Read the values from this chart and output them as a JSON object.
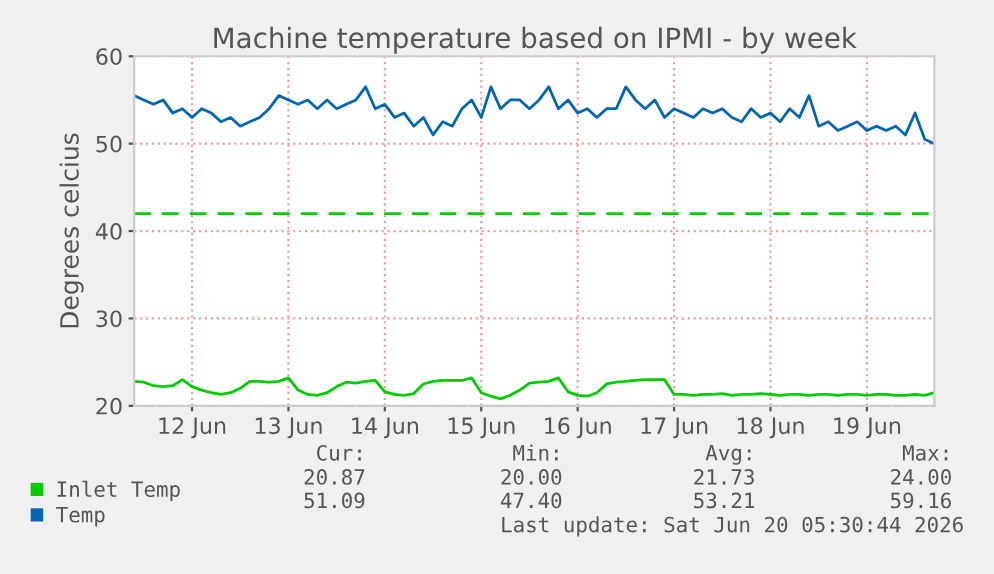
{
  "chart_data": {
    "type": "line",
    "title": "Machine temperature based on IPMI - by week",
    "ylabel": "Degrees celcius",
    "x": [
      "2026-06-11T09:36",
      "2026-06-11T12:00",
      "2026-06-11T14:24",
      "2026-06-11T16:48",
      "2026-06-11T19:12",
      "2026-06-11T21:36",
      "2026-06-12T00:00",
      "2026-06-12T02:24",
      "2026-06-12T04:48",
      "2026-06-12T07:12",
      "2026-06-12T09:36",
      "2026-06-12T12:00",
      "2026-06-12T14:24",
      "2026-06-12T16:48",
      "2026-06-12T19:12",
      "2026-06-12T21:36",
      "2026-06-13T00:00",
      "2026-06-13T02:24",
      "2026-06-13T04:48",
      "2026-06-13T07:12",
      "2026-06-13T09:36",
      "2026-06-13T12:00",
      "2026-06-13T14:24",
      "2026-06-13T16:48",
      "2026-06-13T19:12",
      "2026-06-13T21:36",
      "2026-06-14T00:00",
      "2026-06-14T02:24",
      "2026-06-14T04:48",
      "2026-06-14T07:12",
      "2026-06-14T09:36",
      "2026-06-14T12:00",
      "2026-06-14T14:24",
      "2026-06-14T16:48",
      "2026-06-14T19:12",
      "2026-06-14T21:36",
      "2026-06-15T00:00",
      "2026-06-15T02:24",
      "2026-06-15T04:48",
      "2026-06-15T07:12",
      "2026-06-15T09:36",
      "2026-06-15T12:00",
      "2026-06-15T14:24",
      "2026-06-15T16:48",
      "2026-06-15T19:12",
      "2026-06-15T21:36",
      "2026-06-16T00:00",
      "2026-06-16T02:24",
      "2026-06-16T04:48",
      "2026-06-16T07:12",
      "2026-06-16T09:36",
      "2026-06-16T12:00",
      "2026-06-16T14:24",
      "2026-06-16T16:48",
      "2026-06-16T19:12",
      "2026-06-16T21:36",
      "2026-06-17T00:00",
      "2026-06-17T02:24",
      "2026-06-17T04:48",
      "2026-06-17T07:12",
      "2026-06-17T09:36",
      "2026-06-17T12:00",
      "2026-06-17T14:24",
      "2026-06-17T16:48",
      "2026-06-17T19:12",
      "2026-06-17T21:36",
      "2026-06-18T00:00",
      "2026-06-18T02:24",
      "2026-06-18T04:48",
      "2026-06-18T07:12",
      "2026-06-18T09:36",
      "2026-06-18T12:00",
      "2026-06-18T14:24",
      "2026-06-18T16:48",
      "2026-06-18T19:12",
      "2026-06-18T21:36",
      "2026-06-19T00:00",
      "2026-06-19T02:24",
      "2026-06-19T04:48",
      "2026-06-19T07:12",
      "2026-06-19T09:36",
      "2026-06-19T12:00",
      "2026-06-19T14:24",
      "2026-06-19T16:48"
    ],
    "series": [
      {
        "name": "Inlet Temp",
        "color": "#00cc00",
        "values": [
          22.8,
          22.7,
          22.3,
          22.2,
          22.3,
          23,
          22.2,
          21.8,
          21.5,
          21.3,
          21.5,
          22,
          22.8,
          22.8,
          22.7,
          22.8,
          23.2,
          21.8,
          21.3,
          21.2,
          21.5,
          22.2,
          22.7,
          22.6,
          22.8,
          22.9,
          21.6,
          21.3,
          21.2,
          21.4,
          22.5,
          22.8,
          22.9,
          22.9,
          22.9,
          23.2,
          21.5,
          21.1,
          20.8,
          21.2,
          21.8,
          22.6,
          22.7,
          22.8,
          23.2,
          21.6,
          21.2,
          21.1,
          21.5,
          22.5,
          22.7,
          22.8,
          22.9,
          23,
          23,
          23,
          21.3,
          21.3,
          21.2,
          21.3,
          21.3,
          21.4,
          21.2,
          21.3,
          21.3,
          21.4,
          21.3,
          21.2,
          21.3,
          21.3,
          21.2,
          21.3,
          21.3,
          21.2,
          21.3,
          21.3,
          21.2,
          21.3,
          21.3,
          21.2,
          21.2,
          21.3,
          21.2,
          21.5
        ]
      },
      {
        "name": "Temp",
        "color": "#0066b3",
        "values": [
          55.5,
          55,
          54.5,
          55,
          53.5,
          54,
          53,
          54,
          53.5,
          52.5,
          53,
          52,
          52.5,
          53,
          54,
          55.5,
          55,
          54.5,
          55,
          54,
          55,
          54,
          54.5,
          55,
          56.5,
          54,
          54.5,
          53,
          53.5,
          52,
          53,
          51,
          52.5,
          52,
          54,
          55,
          53,
          56.5,
          54,
          55,
          55,
          54,
          55,
          56.5,
          54,
          55,
          53.5,
          54,
          53,
          54,
          54,
          56.5,
          55,
          54,
          55,
          53,
          54,
          53.5,
          53,
          54,
          53.5,
          54,
          53,
          52.5,
          54,
          53,
          53.5,
          52.5,
          54,
          53,
          55.5,
          52,
          52.5,
          51.5,
          52,
          52.5,
          51.5,
          52,
          51.5,
          52,
          51,
          53.5,
          50.5,
          50
        ]
      }
    ],
    "ref_lines": [
      {
        "axis": "y",
        "value": 42,
        "color": "#00cc00",
        "line_style": "dashed"
      }
    ],
    "xlim": [
      "2026-06-11T09:36",
      "2026-06-19T16:48"
    ],
    "xticks": [
      {
        "value": "2026-06-12",
        "label": "12 Jun"
      },
      {
        "value": "2026-06-13",
        "label": "13 Jun"
      },
      {
        "value": "2026-06-14",
        "label": "14 Jun"
      },
      {
        "value": "2026-06-15",
        "label": "15 Jun"
      },
      {
        "value": "2026-06-16",
        "label": "16 Jun"
      },
      {
        "value": "2026-06-17",
        "label": "17 Jun"
      },
      {
        "value": "2026-06-18",
        "label": "18 Jun"
      },
      {
        "value": "2026-06-19",
        "label": "19 Jun"
      }
    ],
    "ylim": [
      20,
      60
    ],
    "yticks": [
      20,
      30,
      40,
      50,
      60
    ],
    "grid": true,
    "legend": "bottom left",
    "marker": "none",
    "line_style": "solid",
    "annotations": [
      "Cur:",
      "Min:",
      "Avg:",
      "Max:",
      "20.87",
      "20.00",
      "21.73",
      "24.00",
      "51.09",
      "47.40",
      "53.21",
      "59.16",
      "Last update: Sat Jun 20 05:30:44 2026"
    ]
  }
}
